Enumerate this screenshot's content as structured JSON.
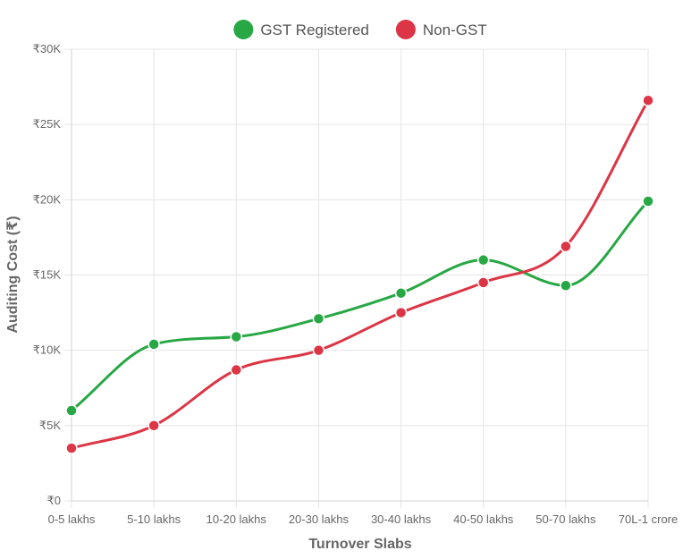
{
  "chart_data": {
    "type": "line",
    "categories": [
      "0-5 lakhs",
      "5-10 lakhs",
      "10-20 lakhs",
      "20-30 lakhs",
      "30-40 lakhs",
      "40-50 lakhs",
      "50-70 lakhs",
      "70L-1 crore"
    ],
    "series": [
      {
        "name": "GST Registered",
        "color": "#28a745",
        "values": [
          6000,
          10400,
          10900,
          12100,
          13800,
          16000,
          14300,
          19900
        ]
      },
      {
        "name": "Non-GST",
        "color": "#dc3545",
        "values": [
          3500,
          5000,
          8700,
          10000,
          12500,
          14500,
          16900,
          26600
        ]
      }
    ],
    "title": "",
    "xlabel": "Turnover Slabs",
    "ylabel": "Auditing Cost (₹)",
    "ylim": [
      0,
      30000
    ],
    "y_ticks": [
      0,
      5000,
      10000,
      15000,
      20000,
      25000,
      30000
    ],
    "y_tick_labels": [
      "₹0",
      "₹5K",
      "₹10K",
      "₹15K",
      "₹20K",
      "₹25K",
      "₹30K"
    ],
    "grid": true,
    "legend_position": "top-center"
  }
}
